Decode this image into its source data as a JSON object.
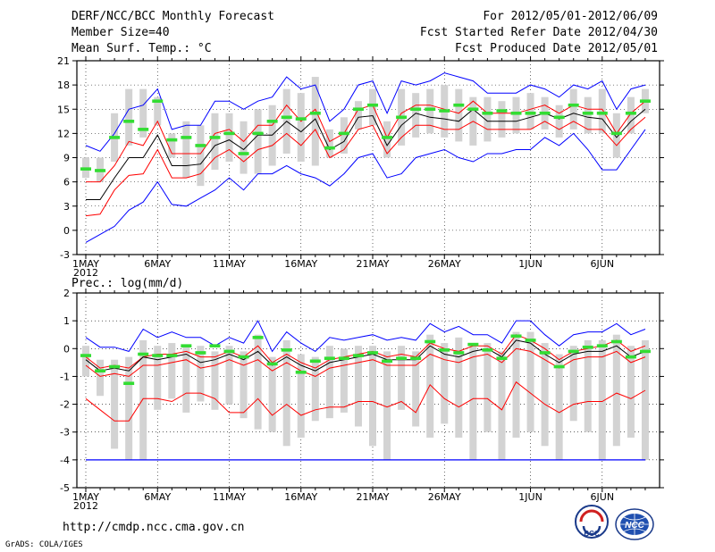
{
  "header": {
    "title": "DERF/NCC/BCC Monthly Forecast",
    "member": "Member Size=40",
    "variable": "Mean Surf. Temp.: °C",
    "period": "For 2012/05/01-2012/06/09",
    "refer": "Fcst Started Refer Date 2012/04/30",
    "produced": "Fcst Produced Date 2012/05/01"
  },
  "footer": {
    "url": "http://cmdp.ncc.cma.gov.cn",
    "grads": "GrADS: COLA/IGES",
    "logo_bcc": "BCC",
    "logo_ncc": "NCC"
  },
  "colors": {
    "ensemble": "#000000",
    "spread": "#ff0000",
    "extremes": "#0000ff",
    "box": "#d3d3d3",
    "obs": "#33dd33"
  },
  "chart_data": [
    {
      "type": "line",
      "title": "Mean Surf. Temp.: °C",
      "ylim": [
        -3,
        21
      ],
      "yticks": [
        -3,
        0,
        3,
        6,
        9,
        12,
        15,
        18,
        21
      ],
      "xtick_labels": [
        "1MAY",
        "6MAY",
        "11MAY",
        "16MAY",
        "21MAY",
        "26MAY",
        "1JUN",
        "6JUN"
      ],
      "xtick_days": [
        1,
        6,
        11,
        16,
        21,
        26,
        32,
        37
      ],
      "year_label": "2012",
      "days": [
        1,
        2,
        3,
        4,
        5,
        6,
        7,
        8,
        9,
        10,
        11,
        12,
        13,
        14,
        15,
        16,
        17,
        18,
        19,
        20,
        21,
        22,
        23,
        24,
        25,
        26,
        27,
        28,
        29,
        30,
        31,
        32,
        33,
        34,
        35,
        36,
        37,
        38,
        39,
        40
      ],
      "series": [
        {
          "name": "max",
          "color": "#0000ff",
          "values": [
            10.5,
            9.8,
            12,
            15,
            15.5,
            17.5,
            12.5,
            13,
            13,
            16,
            16,
            15,
            16,
            16.5,
            19,
            17.5,
            18,
            13.5,
            15,
            18,
            18.5,
            14.5,
            18.5,
            18,
            18.5,
            19.5,
            19,
            18.5,
            17,
            17,
            17,
            18,
            17.5,
            16.5,
            18,
            17.5,
            18.5,
            15,
            17.5,
            18
          ]
        },
        {
          "name": "upper",
          "color": "#ff0000",
          "values": [
            6,
            6,
            8,
            11,
            10.5,
            13.5,
            9.5,
            9.5,
            9.5,
            12,
            12.5,
            11,
            13,
            13,
            15.5,
            13.5,
            15,
            11,
            12,
            15,
            15.5,
            11.5,
            14.5,
            15.5,
            15.5,
            15,
            14.5,
            16,
            14.5,
            14.5,
            14.5,
            15,
            15.5,
            14.5,
            15.5,
            15,
            15,
            12,
            14.5,
            16
          ]
        },
        {
          "name": "mean",
          "color": "#000000",
          "values": [
            3.8,
            3.8,
            6.5,
            9,
            9,
            11.8,
            8,
            8,
            8.2,
            10.5,
            11.2,
            10,
            11.8,
            11.8,
            13.5,
            12.2,
            13.8,
            10,
            11,
            14,
            14.2,
            10.5,
            13,
            14.5,
            14,
            13.8,
            13.5,
            15,
            13.5,
            13.5,
            13.5,
            14,
            14.5,
            13.8,
            14.5,
            14,
            13.8,
            11.5,
            13.5,
            15
          ]
        },
        {
          "name": "lower",
          "color": "#ff0000",
          "values": [
            1.8,
            2,
            5,
            6.8,
            7,
            10,
            6.5,
            6.5,
            7,
            9,
            10,
            8.5,
            10,
            10.5,
            12,
            10.5,
            12.5,
            9,
            10,
            12.5,
            13,
            9.5,
            11.5,
            13,
            13,
            12.5,
            12.5,
            13.5,
            12.5,
            12.5,
            12.5,
            12.5,
            13.5,
            12.5,
            13.5,
            12.5,
            12.5,
            10.5,
            12.5,
            14
          ]
        },
        {
          "name": "min",
          "color": "#0000ff",
          "values": [
            -1.5,
            -0.5,
            0.5,
            2.5,
            3.5,
            6,
            3.2,
            3,
            4,
            5,
            6.5,
            5,
            7,
            7,
            8,
            7,
            6.5,
            5.5,
            7,
            9,
            9.5,
            6.5,
            7,
            9,
            9.5,
            10,
            9,
            8.5,
            9.5,
            9.5,
            10,
            10,
            11.5,
            10.5,
            12,
            10,
            7.5,
            7.5,
            10,
            12.5
          ]
        },
        {
          "name": "box_top",
          "color": "#d3d3d3",
          "values": [
            9,
            9,
            14.5,
            17.5,
            17.5,
            16.5,
            12,
            13.5,
            13,
            14.5,
            14.5,
            13.5,
            15,
            15.5,
            17.5,
            17,
            19,
            12.5,
            14,
            16,
            17.5,
            13.5,
            17.5,
            17,
            17.5,
            18,
            17.5,
            16.5,
            16.5,
            16,
            16.5,
            17,
            16.5,
            15.5,
            17.5,
            16.5,
            17.5,
            14.5,
            16.5,
            17.5
          ]
        },
        {
          "name": "box_bottom",
          "color": "#d3d3d3",
          "values": [
            6.5,
            6,
            8.5,
            10.5,
            11.5,
            13,
            9,
            6.5,
            5.5,
            7.5,
            8.5,
            7,
            7,
            8,
            9.5,
            8.5,
            8,
            9,
            9.5,
            12.5,
            13,
            9,
            10.5,
            11.5,
            12,
            11.5,
            11,
            10.5,
            11,
            11.5,
            12,
            12.5,
            12.5,
            11.5,
            12.5,
            12,
            12,
            9,
            12,
            14.5
          ]
        },
        {
          "name": "observed",
          "color": "#33dd33",
          "values": [
            7.6,
            7.4,
            11.5,
            13.5,
            12.5,
            16,
            11.2,
            11.5,
            10.5,
            11.5,
            12,
            9.5,
            12,
            13.5,
            14,
            13.8,
            14.5,
            10.2,
            12,
            15,
            15.5,
            11.5,
            14,
            15,
            15,
            14.8,
            15.5,
            15,
            14.5,
            14.8,
            14.5,
            14.5,
            14.5,
            14,
            15.5,
            14.5,
            14.5,
            12,
            14.5,
            16
          ]
        }
      ]
    },
    {
      "type": "line",
      "title": "Prec.: log(mm/d)",
      "ylim": [
        -5,
        2
      ],
      "yticks": [
        -5,
        -4,
        -3,
        -2,
        -1,
        0,
        1,
        2
      ],
      "xtick_labels": [
        "1MAY",
        "6MAY",
        "11MAY",
        "16MAY",
        "21MAY",
        "26MAY",
        "1JUN",
        "6JUN"
      ],
      "xtick_days": [
        1,
        6,
        11,
        16,
        21,
        26,
        32,
        37
      ],
      "year_label": "2012",
      "days": [
        1,
        2,
        3,
        4,
        5,
        6,
        7,
        8,
        9,
        10,
        11,
        12,
        13,
        14,
        15,
        16,
        17,
        18,
        19,
        20,
        21,
        22,
        23,
        24,
        25,
        26,
        27,
        28,
        29,
        30,
        31,
        32,
        33,
        34,
        35,
        36,
        37,
        38,
        39,
        40
      ],
      "series": [
        {
          "name": "max",
          "color": "#0000ff",
          "values": [
            0.4,
            0.05,
            0.05,
            -0.1,
            0.7,
            0.4,
            0.6,
            0.4,
            0.4,
            0.1,
            0.4,
            0.2,
            1.0,
            -0.1,
            0.6,
            0.2,
            -0.1,
            0.4,
            0.3,
            0.4,
            0.5,
            0.3,
            0.4,
            0.3,
            0.9,
            0.6,
            0.8,
            0.5,
            0.5,
            0.2,
            1.0,
            1.0,
            0.5,
            0.1,
            0.5,
            0.6,
            0.6,
            0.9,
            0.5,
            0.7
          ]
        },
        {
          "name": "upper",
          "color": "#ff0000",
          "values": [
            -0.3,
            -0.7,
            -0.6,
            -0.7,
            -0.3,
            -0.2,
            -0.2,
            -0.1,
            -0.3,
            -0.3,
            -0.1,
            -0.3,
            0.1,
            -0.5,
            -0.2,
            -0.5,
            -0.7,
            -0.4,
            -0.3,
            -0.2,
            -0.1,
            -0.3,
            -0.2,
            -0.3,
            0.2,
            0.0,
            -0.1,
            0.1,
            0.1,
            -0.2,
            0.5,
            0.3,
            0.0,
            -0.4,
            -0.1,
            0.0,
            0.1,
            0.3,
            -0.1,
            0.1
          ]
        },
        {
          "name": "mean",
          "color": "#000000",
          "values": [
            -0.4,
            -0.8,
            -0.7,
            -0.8,
            -0.3,
            -0.4,
            -0.3,
            -0.2,
            -0.5,
            -0.4,
            -0.2,
            -0.4,
            -0.1,
            -0.6,
            -0.3,
            -0.6,
            -0.8,
            -0.5,
            -0.4,
            -0.3,
            -0.2,
            -0.4,
            -0.4,
            -0.4,
            0.1,
            -0.2,
            -0.3,
            -0.1,
            0.0,
            -0.3,
            0.3,
            0.2,
            -0.2,
            -0.5,
            -0.2,
            -0.1,
            -0.1,
            0.1,
            -0.3,
            -0.1
          ]
        },
        {
          "name": "lower",
          "color": "#ff0000",
          "values": [
            -0.6,
            -1.0,
            -0.9,
            -1.0,
            -0.6,
            -0.6,
            -0.5,
            -0.4,
            -0.7,
            -0.6,
            -0.4,
            -0.6,
            -0.4,
            -0.8,
            -0.5,
            -0.8,
            -1.0,
            -0.7,
            -0.6,
            -0.5,
            -0.4,
            -0.6,
            -0.6,
            -0.6,
            -0.2,
            -0.4,
            -0.5,
            -0.3,
            -0.2,
            -0.5,
            0.0,
            -0.1,
            -0.4,
            -0.7,
            -0.4,
            -0.3,
            -0.3,
            -0.1,
            -0.5,
            -0.3
          ]
        },
        {
          "name": "min",
          "color": "#ff0000",
          "values": [
            -1.8,
            -2.2,
            -2.6,
            -2.6,
            -1.8,
            -1.8,
            -1.9,
            -1.6,
            -1.6,
            -1.8,
            -2.3,
            -2.3,
            -1.8,
            -2.4,
            -2.0,
            -2.4,
            -2.2,
            -2.1,
            -2.1,
            -1.9,
            -1.9,
            -2.1,
            -1.9,
            -2.3,
            -1.3,
            -1.8,
            -2.1,
            -1.8,
            -1.8,
            -2.2,
            -1.2,
            -1.6,
            -2.0,
            -2.3,
            -2.0,
            -1.9,
            -1.9,
            -1.6,
            -1.8,
            -1.5
          ]
        },
        {
          "name": "floor",
          "color": "#0000ff",
          "values": [
            -4,
            -4,
            -4,
            -4,
            -4,
            -4,
            -4,
            -4,
            -4,
            -4,
            -4,
            -4,
            -4,
            -4,
            -4,
            -4,
            -4,
            -4,
            -4,
            -4,
            -4,
            -4,
            -4,
            -4,
            -4,
            -4,
            -4,
            -4,
            -4,
            -4,
            -4,
            -4,
            -4,
            -4,
            -4,
            -4,
            -4,
            -4,
            -4,
            -4
          ]
        },
        {
          "name": "box_top",
          "color": "#d3d3d3",
          "values": [
            0.1,
            -0.4,
            -0.4,
            -0.3,
            0.3,
            0.1,
            0.2,
            0.1,
            0.1,
            -0.1,
            0.1,
            -0.1,
            0.5,
            -0.3,
            0.3,
            -0.2,
            -0.3,
            0.1,
            0.0,
            0.1,
            0.1,
            -0.1,
            0.1,
            -0.1,
            0.5,
            0.2,
            0.4,
            0.2,
            0.2,
            -0.1,
            0.6,
            0.6,
            0.2,
            -0.2,
            0.1,
            0.3,
            0.3,
            0.5,
            0.1,
            0.3
          ]
        },
        {
          "name": "box_bottom",
          "color": "#d3d3d3",
          "values": [
            -1.0,
            -1.7,
            -3.6,
            -4.0,
            -4.0,
            -2.2,
            -1.8,
            -2.3,
            -1.9,
            -2.2,
            -2.0,
            -2.5,
            -2.9,
            -3.0,
            -3.5,
            -3.2,
            -2.6,
            -2.5,
            -2.3,
            -2.8,
            -3.5,
            -4.0,
            -2.2,
            -2.8,
            -3.2,
            -2.7,
            -3.2,
            -4.0,
            -3.0,
            -4.0,
            -3.2,
            -3.0,
            -3.5,
            -4.0,
            -2.6,
            -3.0,
            -4.0,
            -3.5,
            -3.2,
            -4.0
          ]
        },
        {
          "name": "observed",
          "color": "#33dd33",
          "values": [
            -0.25,
            -0.8,
            -0.65,
            -1.25,
            -0.2,
            -0.25,
            -0.25,
            0.1,
            -0.15,
            0.1,
            -0.1,
            -0.3,
            0.4,
            -0.55,
            -0.05,
            -0.85,
            -0.45,
            -0.35,
            -0.35,
            -0.25,
            -0.15,
            -0.45,
            -0.35,
            -0.35,
            0.25,
            -0.05,
            -0.15,
            0.15,
            -0.05,
            -0.35,
            0.45,
            0.3,
            -0.15,
            -0.65,
            -0.1,
            0.05,
            0.1,
            0.25,
            -0.3,
            -0.1
          ]
        }
      ]
    }
  ]
}
